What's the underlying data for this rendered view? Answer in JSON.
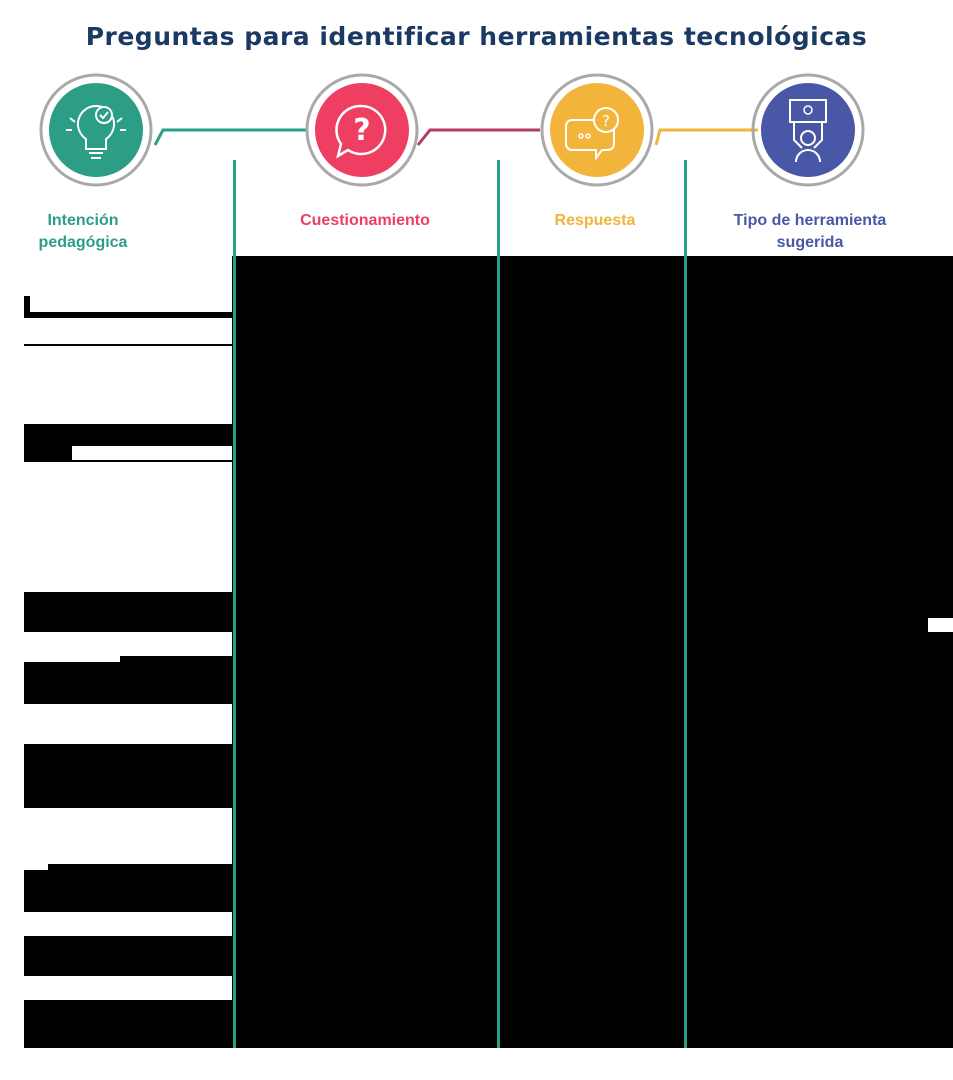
{
  "title": "Preguntas para identificar herramientas tecnológicas",
  "columns": [
    {
      "label": "Intención pedagógica",
      "color": "#2c9e86",
      "icon": "lightbulb-check-icon"
    },
    {
      "label": "Cuestionamiento",
      "color": "#ee3f63",
      "icon": "question-bubble-icon"
    },
    {
      "label": "Respuesta",
      "color": "#f2b43a",
      "icon": "chat-question-icon"
    },
    {
      "label": "Tipo de herramienta sugerida",
      "color": "#4858a6",
      "icon": "person-idea-sign-icon"
    }
  ],
  "colors": {
    "title": "#1a3a64",
    "line": "#2c9e86",
    "ring": "#a9a9a9",
    "connector_1": "#2c9e86",
    "connector_2": "#b23b6c",
    "connector_3": "#f2b43a"
  }
}
